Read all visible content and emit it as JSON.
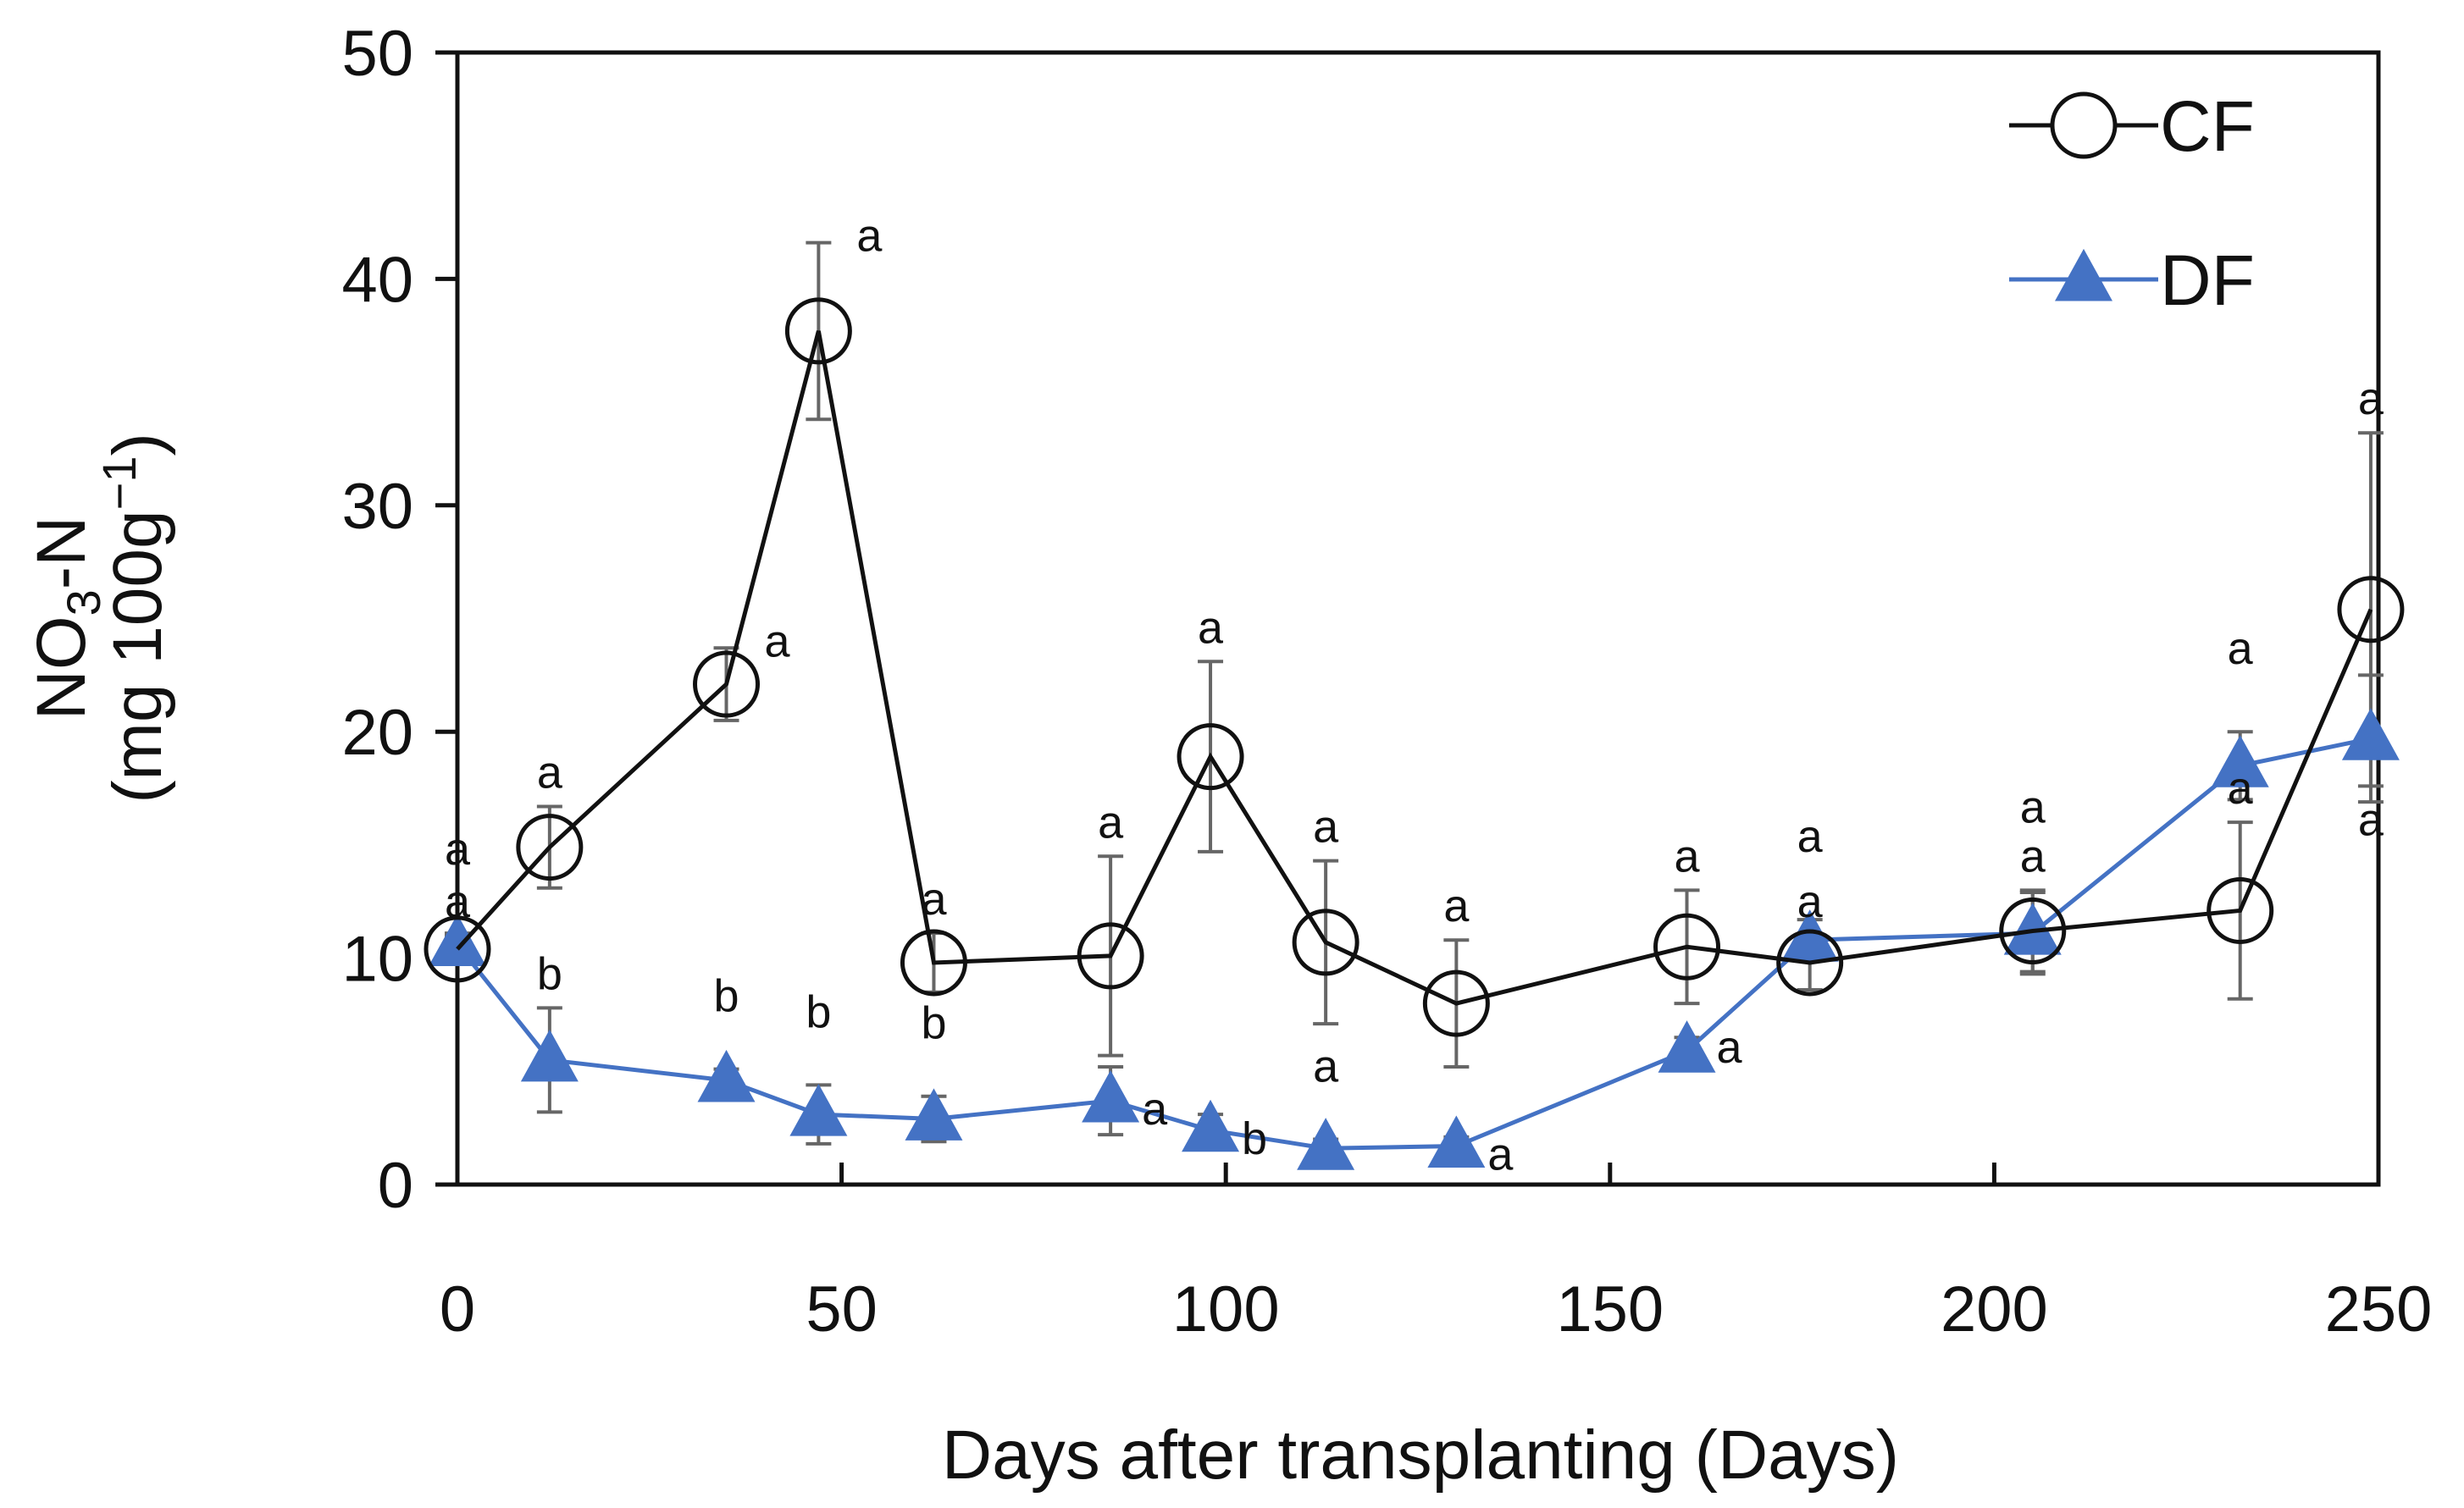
{
  "chart_data": {
    "type": "line",
    "title": "",
    "xlabel": "Days after transplanting (Days)",
    "ylabel": {
      "line1_prefix": "NO",
      "line1_subscript": "3",
      "line1_suffix": "-N",
      "line2_prefix": "(mg 100g",
      "line2_superscript": "−1",
      "line2_suffix": ")"
    },
    "xlim": [
      0,
      250
    ],
    "ylim": [
      0,
      50
    ],
    "xticks": [
      "0",
      "50",
      "100",
      "150",
      "200",
      "250"
    ],
    "yticks": [
      "0",
      "10",
      "20",
      "30",
      "40",
      "50"
    ],
    "grid": false,
    "legend": "top-right",
    "series": [
      {
        "name": "CF",
        "color": "#111111",
        "marker": "open-circle",
        "x": [
          0,
          12,
          35,
          47,
          62,
          85,
          98,
          113,
          130,
          160,
          176,
          205,
          232,
          249
        ],
        "y": [
          10.4,
          14.9,
          22.1,
          37.7,
          9.8,
          10.1,
          18.9,
          10.7,
          8.0,
          10.5,
          9.8,
          11.2,
          12.1,
          25.4
        ],
        "err": [
          0.6,
          1.8,
          1.6,
          3.9,
          1.3,
          4.4,
          4.2,
          3.6,
          2.8,
          2.5,
          1.2,
          1.8,
          3.9,
          7.8
        ],
        "sig": [
          "a",
          "a",
          "a",
          "a",
          "a",
          "a",
          "a",
          "a",
          "a",
          "a",
          "a",
          "a",
          "a",
          "a"
        ]
      },
      {
        "name": "DF",
        "color": "#4472C4",
        "marker": "filled-triangle",
        "x": [
          0,
          12,
          35,
          47,
          62,
          85,
          98,
          113,
          130,
          160,
          176,
          205,
          232,
          249
        ],
        "y": [
          10.6,
          5.5,
          4.6,
          3.1,
          2.9,
          3.7,
          2.4,
          1.6,
          1.7,
          5.9,
          10.8,
          11.1,
          18.5,
          19.7
        ],
        "err": [
          0.5,
          2.3,
          0.5,
          1.3,
          1.0,
          1.5,
          0.7,
          0.4,
          0.4,
          0.6,
          0.9,
          1.8,
          1.5,
          2.8
        ],
        "sig": [
          "a",
          "b",
          "b",
          "b",
          "b",
          "a",
          "b",
          "a",
          "a",
          "a",
          "a",
          "a",
          "a",
          "a"
        ]
      }
    ]
  }
}
